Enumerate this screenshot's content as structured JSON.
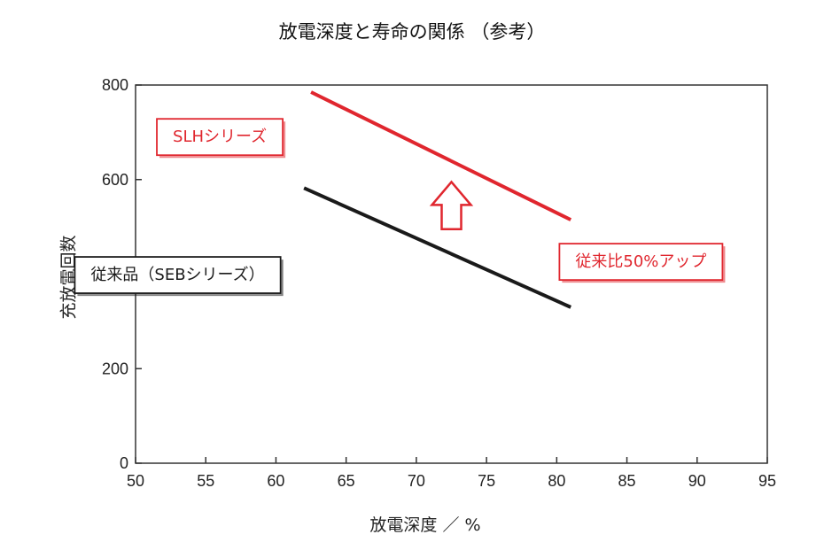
{
  "chart_data": {
    "type": "line",
    "title": "放電深度と寿命の関係 （参考）",
    "xlabel": "放電深度 ／ %",
    "ylabel": "充放電回数",
    "xlim": [
      50,
      95
    ],
    "ylim": [
      0,
      800
    ],
    "xticks": [
      50,
      55,
      60,
      65,
      70,
      75,
      80,
      85,
      90,
      95
    ],
    "yticks": [
      0,
      200,
      400,
      600,
      800
    ],
    "grid": false,
    "series": [
      {
        "name": "SLHシリーズ",
        "color": "#e0262e",
        "x": [
          62.5,
          81
        ],
        "y": [
          785,
          515
        ]
      },
      {
        "name": "従来品（SEBシリーズ）",
        "color": "#1a1a1a",
        "x": [
          62,
          81
        ],
        "y": [
          582,
          330
        ]
      }
    ],
    "annotations": [
      {
        "text": "SLHシリーズ",
        "x": 56,
        "y": 690,
        "color": "#e0262e"
      },
      {
        "text": "従来品（SEBシリーズ）",
        "x": 53,
        "y": 398,
        "color": "#1a1a1a"
      },
      {
        "text": "従来比50%アップ",
        "x": 86,
        "y": 426,
        "color": "#e0262e"
      }
    ],
    "arrow": {
      "x": 72.5,
      "y_from": 495,
      "y_to": 595,
      "color": "#e0262e"
    }
  }
}
